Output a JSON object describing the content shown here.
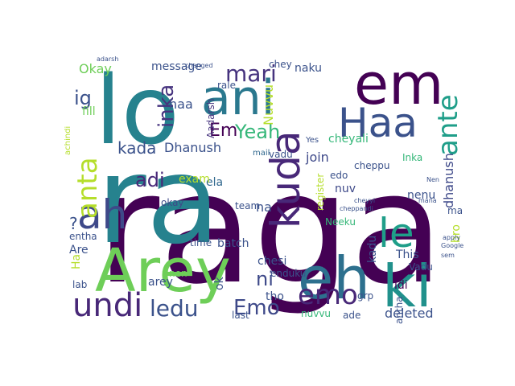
{
  "colors": {
    "background": "#ffffff",
    "palette": [
      "#440154",
      "#482878",
      "#3e4989",
      "#31688e",
      "#26828e",
      "#1f9e89",
      "#35b779",
      "#6ece58",
      "#b5de2b",
      "#fde725"
    ]
  },
  "wordcloud": {
    "words": [
      {
        "text": "raga",
        "color": "#440154"
      },
      {
        "text": "ra",
        "color": "#26828e"
      },
      {
        "text": "lo",
        "color": "#26828e"
      },
      {
        "text": "ani",
        "color": "#2a788e"
      },
      {
        "text": "em",
        "color": "#440154"
      },
      {
        "text": "Arey",
        "color": "#6ece58"
      },
      {
        "text": "eh",
        "color": "#2d708e"
      },
      {
        "text": "ki",
        "color": "#21918c"
      },
      {
        "text": "Haa",
        "color": "#3b528b"
      },
      {
        "text": "kuda",
        "color": "#482878"
      },
      {
        "text": "ah",
        "color": "#3e4989"
      },
      {
        "text": "undi",
        "color": "#482878"
      },
      {
        "text": "emo",
        "color": "#482878"
      },
      {
        "text": "ante",
        "color": "#1f9e89"
      },
      {
        "text": "le",
        "color": "#1f9e89"
      },
      {
        "text": "anta",
        "color": "#b5de2b"
      },
      {
        "text": "ledu",
        "color": "#3b528b"
      },
      {
        "text": "mari",
        "color": "#46337e"
      },
      {
        "text": "inka",
        "color": "#46337e"
      },
      {
        "text": "ig",
        "color": "#3b528b"
      },
      {
        "text": "adi",
        "color": "#482878"
      },
      {
        "text": "Yeah",
        "color": "#35b779"
      },
      {
        "text": "Em",
        "color": "#440154"
      },
      {
        "text": "Emo",
        "color": "#3e4989"
      },
      {
        "text": "ni",
        "color": "#3e4989"
      },
      {
        "text": "kada",
        "color": "#3b528b"
      },
      {
        "text": "Dhanush",
        "color": "#3b528b"
      },
      {
        "text": "haa",
        "color": "#3b528b"
      },
      {
        "text": "message",
        "color": "#3b528b"
      },
      {
        "text": "Okay",
        "color": "#6ece58"
      },
      {
        "text": "fill",
        "color": "#6ece58"
      },
      {
        "text": "ela",
        "color": "#31688e"
      },
      {
        "text": "exam",
        "color": "#b5de2b"
      },
      {
        "text": "okay",
        "color": "#3e4989"
      },
      {
        "text": "naku",
        "color": "#3b528b"
      },
      {
        "text": "chey",
        "color": "#3b528b"
      },
      {
        "text": "rale",
        "color": "#3b528b"
      },
      {
        "text": "join",
        "color": "#3e4989"
      },
      {
        "text": "cheyali",
        "color": "#35b779"
      },
      {
        "text": "Nuvvu",
        "color": "#b5de2b"
      },
      {
        "text": "Aadarsh",
        "color": "#46337e"
      },
      {
        "text": "vadu",
        "color": "#3b528b"
      },
      {
        "text": "mail",
        "color": "#31688e"
      },
      {
        "text": "cheppu",
        "color": "#3b528b"
      },
      {
        "text": "Inka",
        "color": "#35b779"
      },
      {
        "text": "dhanush",
        "color": "#3e4989"
      },
      {
        "text": "nuv",
        "color": "#3e4989"
      },
      {
        "text": "edo",
        "color": "#3b528b"
      },
      {
        "text": "register",
        "color": "#b5de2b"
      },
      {
        "text": "na",
        "color": "#3b528b"
      },
      {
        "text": "team",
        "color": "#3b528b"
      },
      {
        "text": "Neeku",
        "color": "#35b779"
      },
      {
        "text": "nenu",
        "color": "#3b528b"
      },
      {
        "text": "mana",
        "color": "#3b528b"
      },
      {
        "text": "bro",
        "color": "#b5de2b"
      },
      {
        "text": "This",
        "color": "#3b528b"
      },
      {
        "text": "Vadu",
        "color": "#3b528b"
      },
      {
        "text": "kadu",
        "color": "#3b528b"
      },
      {
        "text": "idi",
        "color": "#440154"
      },
      {
        "text": "entha",
        "color": "#3b528b"
      },
      {
        "text": "Are",
        "color": "#3b528b"
      },
      {
        "text": "Ha",
        "color": "#b5de2b"
      },
      {
        "text": "nen",
        "color": "#6ece58"
      },
      {
        "text": "arey",
        "color": "#3b528b"
      },
      {
        "text": "ok",
        "color": "#3b528b"
      },
      {
        "text": "time",
        "color": "#3b528b"
      },
      {
        "text": "batch",
        "color": "#3b528b"
      },
      {
        "text": "chesi",
        "color": "#3b528b"
      },
      {
        "text": "enduku",
        "color": "#3b528b"
      },
      {
        "text": "antha",
        "color": "#3b528b"
      },
      {
        "text": "grp",
        "color": "#3b528b"
      },
      {
        "text": "deleted",
        "color": "#3b528b"
      },
      {
        "text": "ade",
        "color": "#3b528b"
      },
      {
        "text": "nuvvu",
        "color": "#35b779"
      },
      {
        "text": "tho",
        "color": "#3b528b"
      },
      {
        "text": "last",
        "color": "#3b528b"
      },
      {
        "text": "lab",
        "color": "#3b528b"
      },
      {
        "text": "?",
        "color": "#3b528b"
      },
      {
        "text": "achindi",
        "color": "#b5de2b"
      },
      {
        "text": "changed",
        "color": "#3b528b"
      },
      {
        "text": "adarsh",
        "color": "#3b528b"
      },
      {
        "text": "Yes",
        "color": "#3b528b"
      },
      {
        "text": "Nen",
        "color": "#3b528b"
      },
      {
        "text": "cheyyi",
        "color": "#3b528b"
      },
      {
        "text": "cheppandi",
        "color": "#3b528b"
      },
      {
        "text": "apply",
        "color": "#3b528b"
      },
      {
        "text": "Google",
        "color": "#3b528b"
      },
      {
        "text": "sem",
        "color": "#3b528b"
      },
      {
        "text": "mana",
        "color": "#3b528b"
      }
    ]
  }
}
